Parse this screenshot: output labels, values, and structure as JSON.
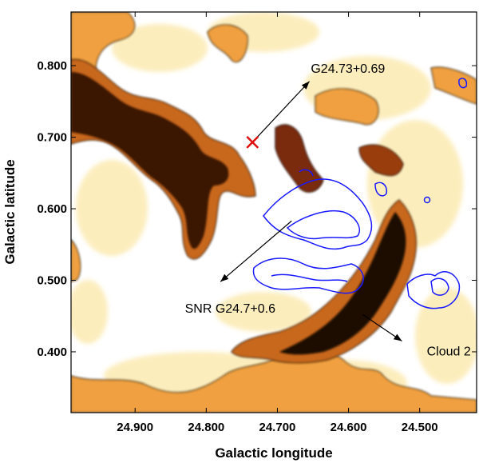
{
  "chart_data": {
    "type": "heatmap",
    "title": "",
    "xlabel": "Galactic longitude",
    "ylabel": "Galactic latitude",
    "xlim": [
      24.99,
      24.42
    ],
    "ylim": [
      0.315,
      0.875
    ],
    "x_inverted": true,
    "x_ticks": [
      24.9,
      24.8,
      24.7,
      24.6,
      24.5
    ],
    "x_tick_labels": [
      "24.900",
      "24.800",
      "24.700",
      "24.600",
      "24.500"
    ],
    "y_ticks": [
      0.4,
      0.5,
      0.6,
      0.7,
      0.8
    ],
    "y_tick_labels": [
      "0.400",
      "0.500",
      "0.600",
      "0.700",
      "0.800"
    ],
    "grid": false,
    "colormap": [
      "#ffffff",
      "#fde9a8",
      "#f6b44a",
      "#c8681c",
      "#7a2a0c",
      "#1e0a05"
    ],
    "contour_color": "#000000",
    "overlay_contour_color": "#1a1aff",
    "marker": {
      "symbol": "x",
      "color": "#e01010",
      "l": 24.735,
      "b": 0.693
    },
    "annotations": [
      {
        "text": "G24.73+0.69",
        "arrow_from": [
          24.735,
          0.693
        ],
        "arrow_to": [
          24.655,
          0.778
        ],
        "text_at": [
          24.653,
          0.79
        ]
      },
      {
        "text": "SNR G24.7+0.6",
        "arrow_from": [
          24.68,
          0.583
        ],
        "arrow_to": [
          24.78,
          0.498
        ],
        "text_at": [
          24.83,
          0.455
        ]
      },
      {
        "text": "Cloud 2",
        "arrow_from": [
          24.58,
          0.452
        ],
        "arrow_to": [
          24.525,
          0.415
        ],
        "text_at": [
          24.49,
          0.395
        ]
      }
    ]
  }
}
